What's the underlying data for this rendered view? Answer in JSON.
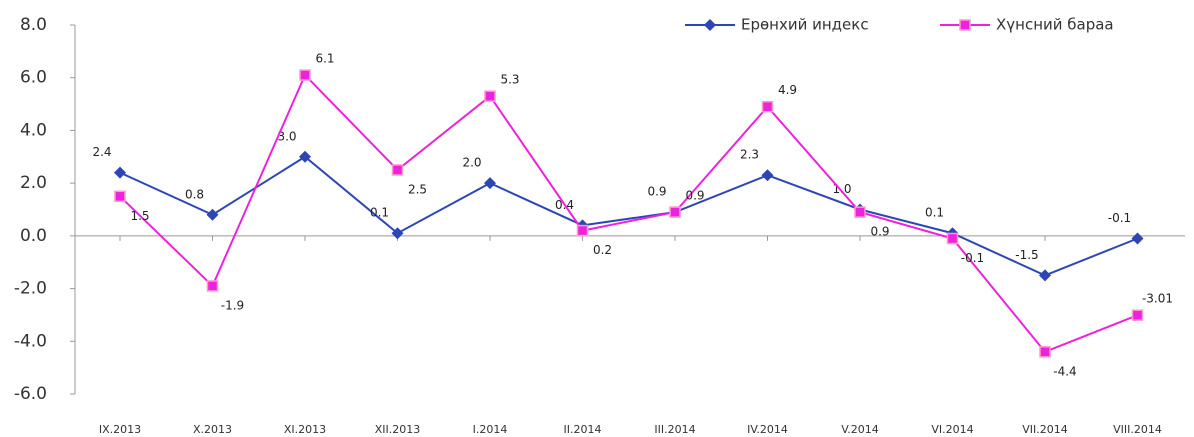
{
  "chart_data": {
    "type": "line",
    "categories": [
      "IX.2013",
      "X.2013",
      "XI.2013",
      "XII.2013",
      "I.2014",
      "II.2014",
      "III.2014",
      "IV.2014",
      "V.2014",
      "VI.2014",
      "VII.2014",
      "VIII.2014"
    ],
    "series": [
      {
        "name": "Ерөнхий индекс",
        "color": "#2e46b4",
        "marker": "diamond",
        "values": [
          2.4,
          0.8,
          3.0,
          0.1,
          2.0,
          0.4,
          0.9,
          2.3,
          1.0,
          0.1,
          -1.5,
          -0.1
        ],
        "value_labels": [
          "2.4",
          "0.8",
          "3.0",
          "0.1",
          "2.0",
          "0.4",
          "0.9",
          "2.3",
          "1.0",
          "0.1",
          "-1.5",
          "-0.1"
        ]
      },
      {
        "name": "Хүнсний бараа",
        "color": "#ee22dd",
        "marker": "square",
        "values": [
          1.5,
          -1.9,
          6.1,
          2.5,
          5.3,
          0.2,
          0.9,
          4.9,
          0.9,
          -0.1,
          -4.4,
          -3.01
        ],
        "value_labels": [
          "1.5",
          "-1.9",
          "6.1",
          "2.5",
          "5.3",
          "0.2",
          "0.9",
          "4.9",
          "0.9",
          "-0.1",
          "-4.4",
          "-3.01"
        ]
      }
    ],
    "ylim": [
      -6,
      8
    ],
    "yticks": [
      {
        "value": -6,
        "label": "-6.0"
      },
      {
        "value": -4,
        "label": "-4.0"
      },
      {
        "value": -2,
        "label": "-2.0"
      },
      {
        "value": 0,
        "label": "0.0"
      },
      {
        "value": 2,
        "label": "2.0"
      },
      {
        "value": 4,
        "label": "4.0"
      },
      {
        "value": 6,
        "label": "6.0"
      },
      {
        "value": 8,
        "label": "8.0"
      }
    ],
    "grid": false,
    "legend": "top-right"
  }
}
